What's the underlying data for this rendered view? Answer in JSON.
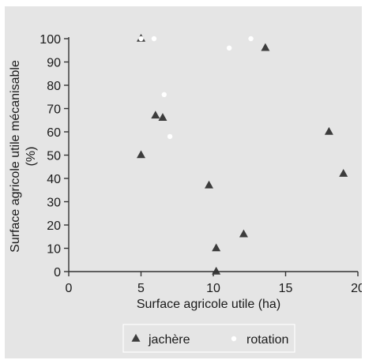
{
  "chart_data": {
    "type": "scatter",
    "xlabel": "Surface agricole utile (ha)",
    "ylabel_line1": "Surface agricole utile mécanisable",
    "ylabel_line2": "(%)",
    "xlim": [
      0,
      20
    ],
    "ylim": [
      0,
      100
    ],
    "x_ticks": [
      "0",
      "5",
      "10",
      "15",
      "20"
    ],
    "y_ticks": [
      "0",
      "10",
      "20",
      "30",
      "40",
      "50",
      "60",
      "70",
      "80",
      "90",
      "100"
    ],
    "grid": false,
    "legend_position": "bottom",
    "series": [
      {
        "name": "jachère",
        "marker": "triangle",
        "color": "#3c3c3c",
        "points": [
          {
            "x": 5.0,
            "y": 100
          },
          {
            "x": 5.0,
            "y": 50
          },
          {
            "x": 6.0,
            "y": 67
          },
          {
            "x": 6.5,
            "y": 66
          },
          {
            "x": 9.7,
            "y": 37
          },
          {
            "x": 10.2,
            "y": 10
          },
          {
            "x": 10.2,
            "y": 0
          },
          {
            "x": 12.1,
            "y": 16
          },
          {
            "x": 13.6,
            "y": 96
          },
          {
            "x": 18.0,
            "y": 60
          },
          {
            "x": 19.0,
            "y": 42
          }
        ]
      },
      {
        "name": "rotation",
        "marker": "circle",
        "color": "#ffffff",
        "points": [
          {
            "x": 5.0,
            "y": 100
          },
          {
            "x": 5.9,
            "y": 100
          },
          {
            "x": 6.6,
            "y": 76
          },
          {
            "x": 7.0,
            "y": 58
          },
          {
            "x": 11.1,
            "y": 96
          },
          {
            "x": 12.6,
            "y": 100
          }
        ]
      }
    ]
  }
}
